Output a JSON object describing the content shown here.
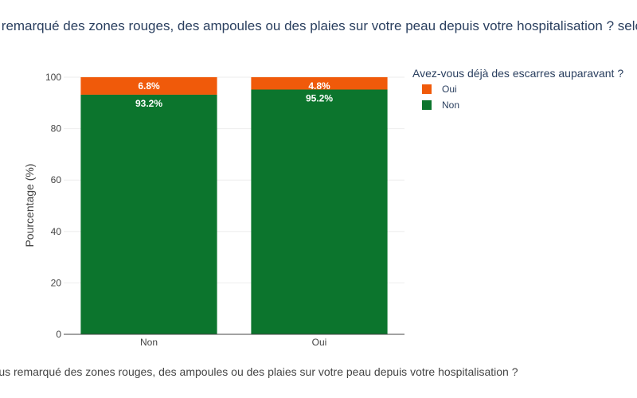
{
  "chart_data": {
    "type": "bar",
    "stacked": true,
    "title": "Avez-vous remarqué des zones rouges, des ampoules ou des plaies sur votre peau depuis votre hospitalisation ? selon Avez-vous déjà des escarres auparavant ?",
    "xlabel": "Avez-vous remarqué des zones rouges, des ampoules ou des plaies sur votre peau depuis votre hospitalisation ?",
    "ylabel": "Pourcentage (%)",
    "ylim": [
      0,
      100
    ],
    "yticks": [
      "0",
      "20",
      "40",
      "60",
      "80",
      "100"
    ],
    "grid": true,
    "categories": [
      "Non",
      "Oui"
    ],
    "legend": {
      "title": "Avez-vous déjà des escarres auparavant ?",
      "placement": "top-right"
    },
    "series": [
      {
        "name": "Oui",
        "color": "#f05a0a",
        "values": [
          6.8,
          4.8
        ],
        "labels": [
          "6.8%",
          "4.8%"
        ]
      },
      {
        "name": "Non",
        "color": "#0c752d",
        "values": [
          93.2,
          95.2
        ],
        "labels": [
          "93.2%",
          "95.2%"
        ]
      }
    ]
  }
}
